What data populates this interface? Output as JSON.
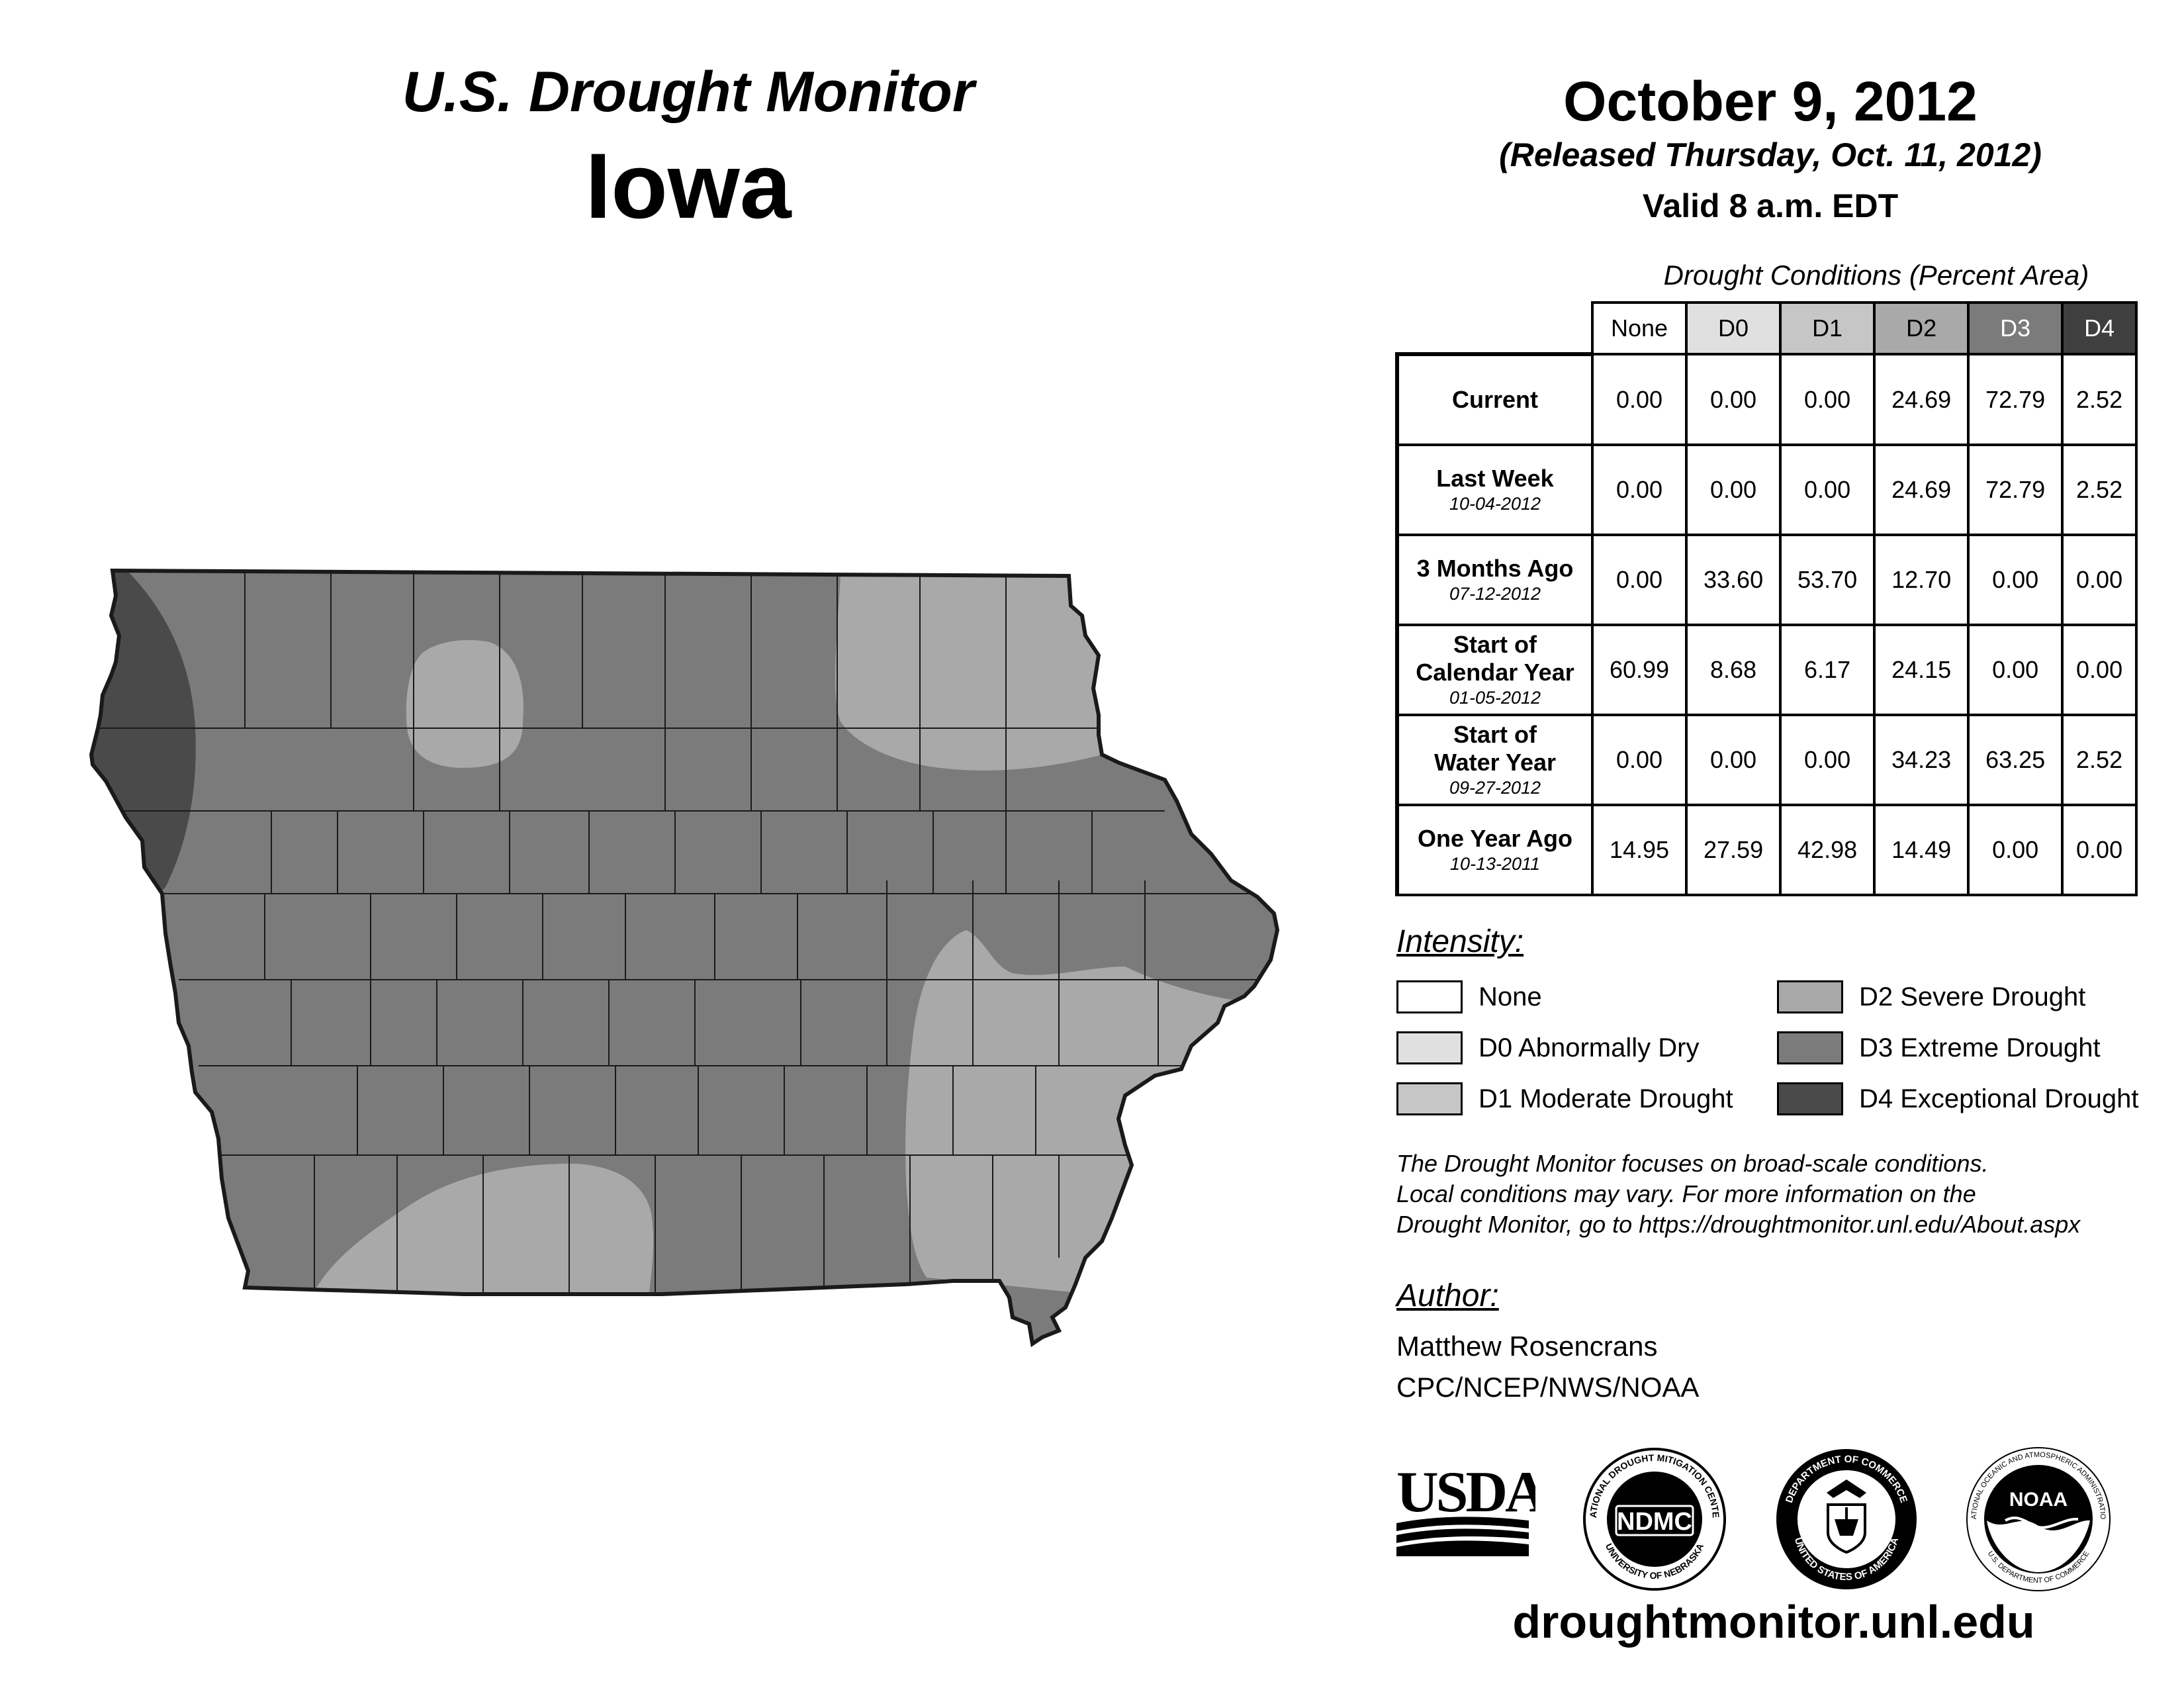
{
  "header": {
    "title": "U.S. Drought Monitor",
    "state": "Iowa",
    "date": "October 9, 2012",
    "released": "(Released Thursday, Oct. 11, 2012)",
    "valid": "Valid 8 a.m. EDT"
  },
  "table": {
    "caption": "Drought Conditions (Percent Area)",
    "columns": [
      "None",
      "D0",
      "D1",
      "D2",
      "D3",
      "D4"
    ],
    "rows": [
      {
        "label": "Current",
        "label2": "",
        "date": "",
        "values": [
          "0.00",
          "0.00",
          "0.00",
          "24.69",
          "72.79",
          "2.52"
        ]
      },
      {
        "label": "Last Week",
        "label2": "",
        "date": "10-04-2012",
        "values": [
          "0.00",
          "0.00",
          "0.00",
          "24.69",
          "72.79",
          "2.52"
        ]
      },
      {
        "label": "3 Months Ago",
        "label2": "",
        "date": "07-12-2012",
        "values": [
          "0.00",
          "33.60",
          "53.70",
          "12.70",
          "0.00",
          "0.00"
        ]
      },
      {
        "label": "Start of",
        "label2": "Calendar Year",
        "date": "01-05-2012",
        "values": [
          "60.99",
          "8.68",
          "6.17",
          "24.15",
          "0.00",
          "0.00"
        ]
      },
      {
        "label": "Start of",
        "label2": "Water Year",
        "date": "09-27-2012",
        "values": [
          "0.00",
          "0.00",
          "0.00",
          "34.23",
          "63.25",
          "2.52"
        ]
      },
      {
        "label": "One Year Ago",
        "label2": "",
        "date": "10-13-2011",
        "values": [
          "14.95",
          "27.59",
          "42.98",
          "14.49",
          "0.00",
          "0.00"
        ]
      }
    ]
  },
  "legend": {
    "title": "Intensity:",
    "items": [
      {
        "label": "None",
        "color": "#ffffff"
      },
      {
        "label": "D0 Abnormally Dry",
        "color": "#e0e0e0"
      },
      {
        "label": "D1 Moderate Drought",
        "color": "#c6c6c6"
      },
      {
        "label": "D2 Severe Drought",
        "color": "#a9a9a9"
      },
      {
        "label": "D3 Extreme Drought",
        "color": "#7b7b7b"
      },
      {
        "label": "D4 Exceptional Drought",
        "color": "#4a4a4a"
      }
    ]
  },
  "note": {
    "line1": "The Drought Monitor focuses on broad-scale conditions.",
    "line2": "Local conditions may vary. For more information on the",
    "line3": "Drought Monitor, go to https://droughtmonitor.unl.edu/About.aspx"
  },
  "author": {
    "title": "Author:",
    "name": "Matthew Rosencrans",
    "org": "CPC/NCEP/NWS/NOAA"
  },
  "logos": {
    "usda": "USDA",
    "ndmc": "NDMC",
    "ndmc_ring_top": "NATIONAL DROUGHT MITIGATION CENTER",
    "ndmc_ring_bottom": "UNIVERSITY OF NEBRASKA",
    "doc_ring_top": "DEPARTMENT OF COMMERCE",
    "doc_ring_bottom": "UNITED STATES OF AMERICA",
    "noaa": "NOAA",
    "noaa_ring_top": "NATIONAL OCEANIC AND ATMOSPHERIC ADMINISTRATION",
    "noaa_ring_bottom": "U.S. DEPARTMENT OF COMMERCE"
  },
  "website": "droughtmonitor.unl.edu",
  "map": {
    "colors": {
      "d1": "#c6c6c6",
      "d2": "#a9a9a9",
      "d3": "#7b7b7b",
      "d4": "#4a4a4a",
      "border": "#1a1a1a"
    }
  }
}
